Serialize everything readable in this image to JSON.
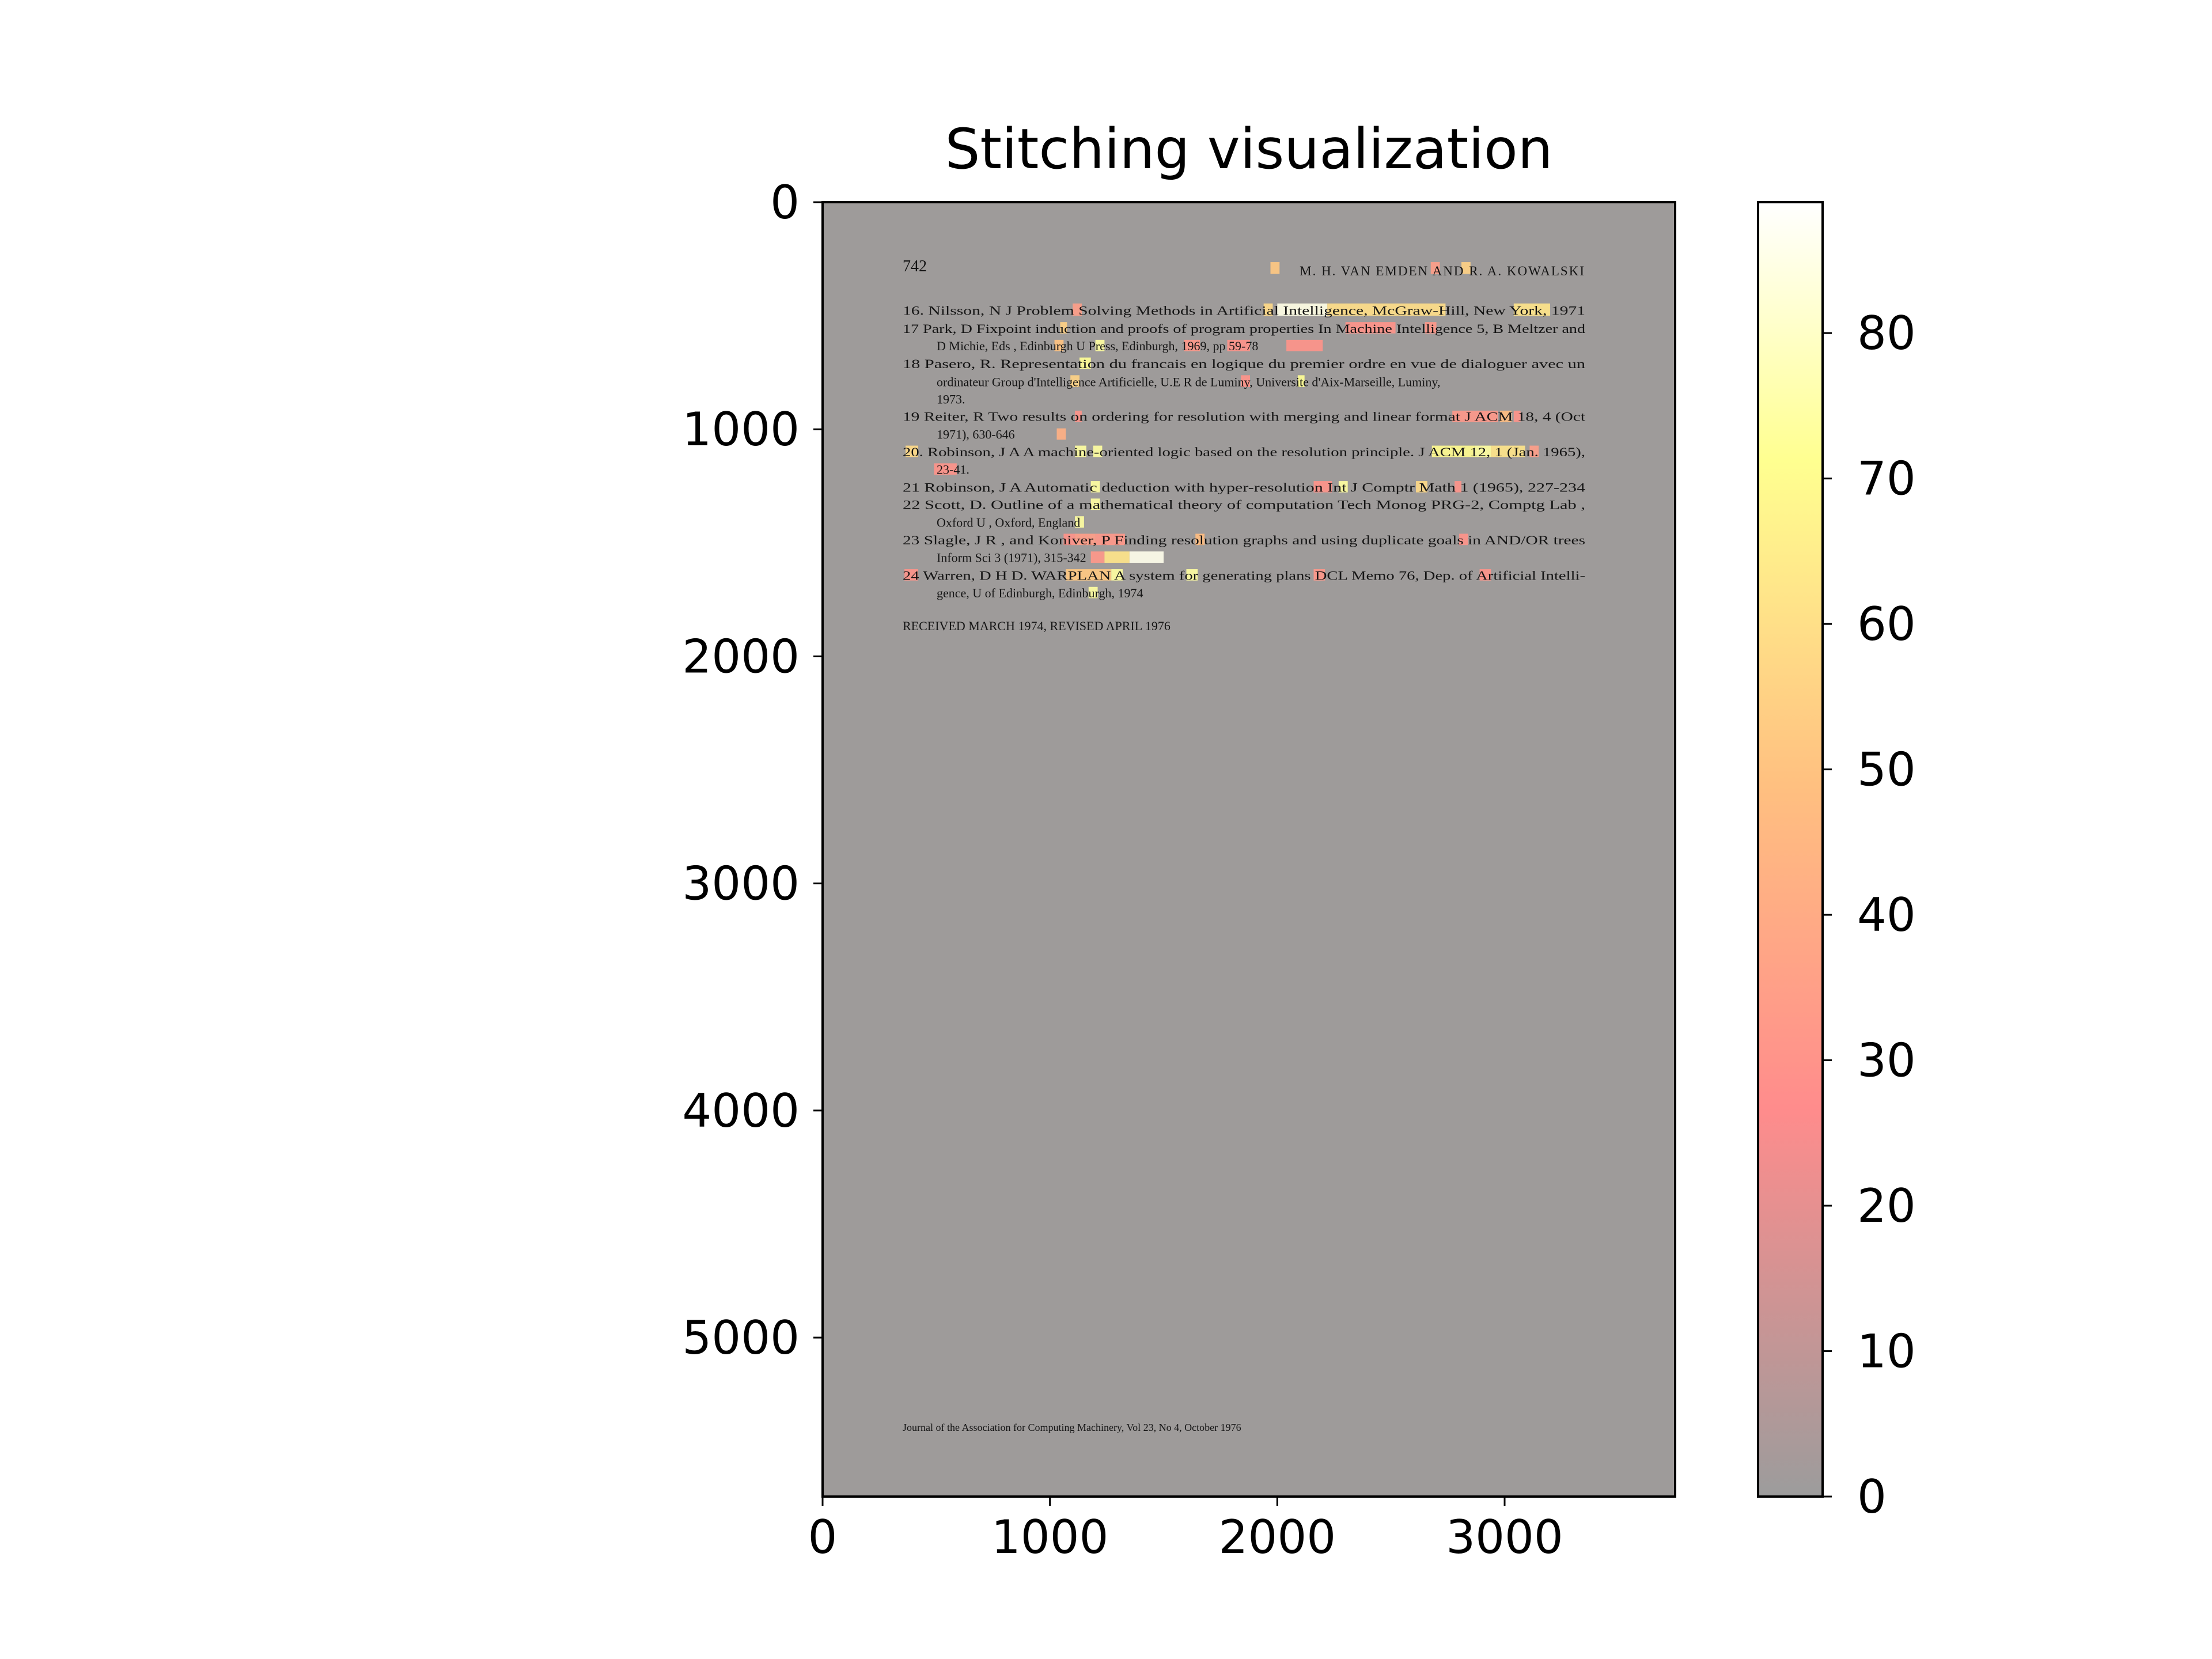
{
  "chart_data": {
    "type": "heatmap",
    "title": "Stitching visualization",
    "xlabel": "",
    "ylabel": "",
    "xlim": [
      0,
      3750
    ],
    "ylim": [
      5700,
      0
    ],
    "x_ticks": [
      0,
      1000,
      2000,
      3000
    ],
    "y_ticks": [
      0,
      1000,
      2000,
      3000,
      4000,
      5000
    ],
    "x_tick_labels": [
      "0",
      "1000",
      "2000",
      "3000"
    ],
    "y_tick_labels": [
      "0",
      "1000",
      "2000",
      "3000",
      "4000",
      "5000"
    ],
    "colorbar": {
      "range": [
        0,
        89
      ],
      "ticks": [
        0,
        10,
        20,
        30,
        40,
        50,
        60,
        70,
        80
      ],
      "tick_labels": [
        "0",
        "10",
        "20",
        "30",
        "40",
        "50",
        "60",
        "70",
        "80"
      ],
      "colormap": "hot_r",
      "colors": [
        "#9c9c9c",
        "#ff8c8c",
        "#ffc080",
        "#ffff90",
        "#ffffff"
      ]
    },
    "background_color": "#9e9b9a",
    "document": {
      "header_left": "742",
      "header_right": "M. H. VAN EMDEN AND R. A. KOWALSKI",
      "lines": [
        {
          "y": 476,
          "indent": false,
          "text": "16. Nilsson, N J Problem Solving Methods in Artificial Intelligence, McGraw-Hill, New York, 1971"
        },
        {
          "y": 555,
          "indent": false,
          "text": "17 Park, D Fixpoint induction and proofs of program properties In Machine Intelligence 5, B Meltzer and"
        },
        {
          "y": 632,
          "indent": true,
          "text": "D Michie, Eds , Edinburgh U Press, Edinburgh, 1969, pp 59-78"
        },
        {
          "y": 710,
          "indent": false,
          "text": "18 Pasero, R. Representation du francais en logique du premier ordre en vue de dialoguer avec un"
        },
        {
          "y": 790,
          "indent": true,
          "text": "ordinateur Group d'Intelligence Artificielle, U.E R de Luminy, Universite d'Aix-Marseille, Luminy,"
        },
        {
          "y": 866,
          "indent": true,
          "text": "1973."
        },
        {
          "y": 943,
          "indent": false,
          "text": "19 Reiter, R Two results on ordering for resolution with merging and linear format J ACM 18, 4 (Oct"
        },
        {
          "y": 1021,
          "indent": true,
          "text": "1971), 630-646"
        },
        {
          "y": 1098,
          "indent": false,
          "text": "20. Robinson, J A A machine-oriented logic based on the resolution principle. J ACM 12, 1 (Jan. 1965),"
        },
        {
          "y": 1176,
          "indent": true,
          "text": "23-41."
        },
        {
          "y": 1254,
          "indent": false,
          "text": "21 Robinson, J A Automatic deduction with hyper-resolution Int J Comptr Math 1 (1965), 227-234"
        },
        {
          "y": 1331,
          "indent": false,
          "text": "22 Scott, D. Outline of a mathematical theory of computation Tech Monog PRG-2, Comptg Lab ,"
        },
        {
          "y": 1409,
          "indent": true,
          "text": "Oxford U , Oxford, England"
        },
        {
          "y": 1487,
          "indent": false,
          "text": "23 Slagle, J R , and Koniver, P Finding resolution graphs and using duplicate goals in AND/OR trees"
        },
        {
          "y": 1564,
          "indent": true,
          "text": "Inform Sci 3 (1971), 315-342"
        },
        {
          "y": 1642,
          "indent": false,
          "text": "24 Warren, D H D. WARPLAN A system for generating plans DCL Memo 76, Dep. of Artificial Intelli-"
        },
        {
          "y": 1720,
          "indent": true,
          "text": "gence, U of Edinburgh, Edinburgh, 1974"
        }
      ],
      "received": "RECEIVED MARCH 1974, REVISED APRIL 1976",
      "footer": "Journal of the Association for Computing Machinery, Vol 23, No 4, October 1976"
    },
    "overlay_regions": [
      {
        "x0": 1970,
        "x1": 2010,
        "y0": 264,
        "y1": 316,
        "value": 52
      },
      {
        "x0": 2675,
        "x1": 2715,
        "y0": 264,
        "y1": 316,
        "value": 35
      },
      {
        "x0": 2810,
        "x1": 2850,
        "y0": 264,
        "y1": 316,
        "value": 55
      },
      {
        "x0": 1100,
        "x1": 1140,
        "y0": 446,
        "y1": 500,
        "value": 35
      },
      {
        "x0": 1940,
        "x1": 1980,
        "y0": 446,
        "y1": 500,
        "value": 58
      },
      {
        "x0": 2000,
        "x1": 2220,
        "y0": 446,
        "y1": 500,
        "value": 85
      },
      {
        "x0": 2220,
        "x1": 2740,
        "y0": 446,
        "y1": 500,
        "value": 60
      },
      {
        "x0": 3040,
        "x1": 3200,
        "y0": 446,
        "y1": 500,
        "value": 62
      },
      {
        "x0": 1045,
        "x1": 1075,
        "y0": 528,
        "y1": 578,
        "value": 55
      },
      {
        "x0": 2300,
        "x1": 2520,
        "y0": 528,
        "y1": 578,
        "value": 30
      },
      {
        "x0": 2650,
        "x1": 2700,
        "y0": 528,
        "y1": 578,
        "value": 32
      },
      {
        "x0": 1020,
        "x1": 1060,
        "y0": 606,
        "y1": 656,
        "value": 50
      },
      {
        "x0": 1200,
        "x1": 1240,
        "y0": 606,
        "y1": 656,
        "value": 74
      },
      {
        "x0": 1590,
        "x1": 1660,
        "y0": 606,
        "y1": 656,
        "value": 32
      },
      {
        "x0": 1780,
        "x1": 1880,
        "y0": 606,
        "y1": 656,
        "value": 30
      },
      {
        "x0": 2040,
        "x1": 2200,
        "y0": 606,
        "y1": 656,
        "value": 30
      },
      {
        "x0": 1130,
        "x1": 1180,
        "y0": 684,
        "y1": 734,
        "value": 72
      },
      {
        "x0": 1090,
        "x1": 1130,
        "y0": 762,
        "y1": 814,
        "value": 56
      },
      {
        "x0": 1840,
        "x1": 1880,
        "y0": 762,
        "y1": 814,
        "value": 30
      },
      {
        "x0": 2090,
        "x1": 2120,
        "y0": 762,
        "y1": 814,
        "value": 72
      },
      {
        "x0": 1110,
        "x1": 1140,
        "y0": 918,
        "y1": 968,
        "value": 30
      },
      {
        "x0": 2770,
        "x1": 2970,
        "y0": 918,
        "y1": 968,
        "value": 32
      },
      {
        "x0": 2980,
        "x1": 3030,
        "y0": 918,
        "y1": 968,
        "value": 48
      },
      {
        "x0": 3040,
        "x1": 3070,
        "y0": 918,
        "y1": 968,
        "value": 30
      },
      {
        "x0": 1030,
        "x1": 1070,
        "y0": 996,
        "y1": 1046,
        "value": 42
      },
      {
        "x0": 365,
        "x1": 420,
        "y0": 1072,
        "y1": 1122,
        "value": 58
      },
      {
        "x0": 1110,
        "x1": 1160,
        "y0": 1072,
        "y1": 1122,
        "value": 74
      },
      {
        "x0": 1190,
        "x1": 1230,
        "y0": 1072,
        "y1": 1122,
        "value": 74
      },
      {
        "x0": 2680,
        "x1": 2870,
        "y0": 1072,
        "y1": 1122,
        "value": 70
      },
      {
        "x0": 2870,
        "x1": 2940,
        "y0": 1072,
        "y1": 1122,
        "value": 74
      },
      {
        "x0": 2940,
        "x1": 3090,
        "y0": 1072,
        "y1": 1122,
        "value": 62
      },
      {
        "x0": 3110,
        "x1": 3150,
        "y0": 1072,
        "y1": 1122,
        "value": 35
      },
      {
        "x0": 490,
        "x1": 590,
        "y0": 1150,
        "y1": 1200,
        "value": 30
      },
      {
        "x0": 1180,
        "x1": 1220,
        "y0": 1228,
        "y1": 1278,
        "value": 74
      },
      {
        "x0": 2160,
        "x1": 2240,
        "y0": 1228,
        "y1": 1278,
        "value": 30
      },
      {
        "x0": 2270,
        "x1": 2310,
        "y0": 1228,
        "y1": 1278,
        "value": 74
      },
      {
        "x0": 2610,
        "x1": 2660,
        "y0": 1228,
        "y1": 1278,
        "value": 58
      },
      {
        "x0": 2780,
        "x1": 2810,
        "y0": 1228,
        "y1": 1278,
        "value": 30
      },
      {
        "x0": 1180,
        "x1": 1220,
        "y0": 1305,
        "y1": 1355,
        "value": 74
      },
      {
        "x0": 1110,
        "x1": 1150,
        "y0": 1383,
        "y1": 1433,
        "value": 74
      },
      {
        "x0": 1060,
        "x1": 1110,
        "y0": 1460,
        "y1": 1510,
        "value": 30
      },
      {
        "x0": 1110,
        "x1": 1200,
        "y0": 1460,
        "y1": 1510,
        "value": 35
      },
      {
        "x0": 1200,
        "x1": 1330,
        "y0": 1460,
        "y1": 1510,
        "value": 32
      },
      {
        "x0": 1640,
        "x1": 1680,
        "y0": 1460,
        "y1": 1510,
        "value": 48
      },
      {
        "x0": 2800,
        "x1": 2840,
        "y0": 1460,
        "y1": 1510,
        "value": 30
      },
      {
        "x0": 1180,
        "x1": 1240,
        "y0": 1538,
        "y1": 1588,
        "value": 32
      },
      {
        "x0": 1240,
        "x1": 1350,
        "y0": 1538,
        "y1": 1588,
        "value": 62
      },
      {
        "x0": 1350,
        "x1": 1500,
        "y0": 1538,
        "y1": 1588,
        "value": 86
      },
      {
        "x0": 360,
        "x1": 420,
        "y0": 1616,
        "y1": 1666,
        "value": 30
      },
      {
        "x0": 1070,
        "x1": 1270,
        "y0": 1616,
        "y1": 1666,
        "value": 52
      },
      {
        "x0": 1270,
        "x1": 1320,
        "y0": 1616,
        "y1": 1666,
        "value": 74
      },
      {
        "x0": 1600,
        "x1": 1650,
        "y0": 1616,
        "y1": 1666,
        "value": 74
      },
      {
        "x0": 2160,
        "x1": 2210,
        "y0": 1616,
        "y1": 1666,
        "value": 32
      },
      {
        "x0": 2890,
        "x1": 2940,
        "y0": 1616,
        "y1": 1666,
        "value": 30
      },
      {
        "x0": 1170,
        "x1": 1210,
        "y0": 1694,
        "y1": 1744,
        "value": 74
      }
    ]
  }
}
